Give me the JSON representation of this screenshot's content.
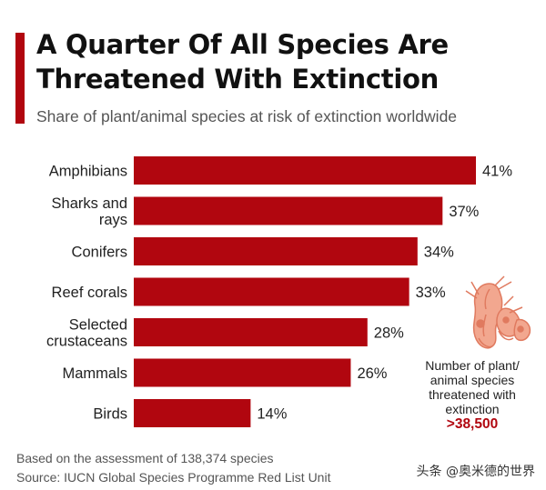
{
  "header": {
    "title_line1": "A Quarter Of  All Species Are",
    "title_line2": "Threatened With Extinction",
    "subtitle": "Share of plant/animal species at risk of extinction worldwide"
  },
  "chart_data": {
    "type": "bar",
    "orientation": "horizontal",
    "categories": [
      [
        "Amphibians"
      ],
      [
        "Sharks and",
        "rays"
      ],
      [
        "Conifers"
      ],
      [
        "Reef corals"
      ],
      [
        "Selected",
        "crustaceans"
      ],
      [
        "Mammals"
      ],
      [
        "Birds"
      ]
    ],
    "values": [
      41,
      37,
      34,
      33,
      28,
      26,
      14
    ],
    "value_labels": [
      "41%",
      "37%",
      "34%",
      "33%",
      "28%",
      "26%",
      "14%"
    ],
    "unit": "%",
    "bar_color": "#b1060f",
    "xlim": [
      0,
      41
    ]
  },
  "annotation": {
    "lines": [
      "Number of plant/",
      "animal species",
      "threatened with",
      "extinction"
    ],
    "value": ">38,500",
    "icon": "shrimp-illustration-icon"
  },
  "footer": {
    "note": "Based on the assessment of 138,374 species",
    "source": "Source: IUCN Global Species Programme Red List Unit"
  },
  "watermark": "头条 @奥米德的世界",
  "colors": {
    "accent": "#b1060f",
    "highlight": "#b1060f",
    "icon_fill": "#e8866b"
  }
}
